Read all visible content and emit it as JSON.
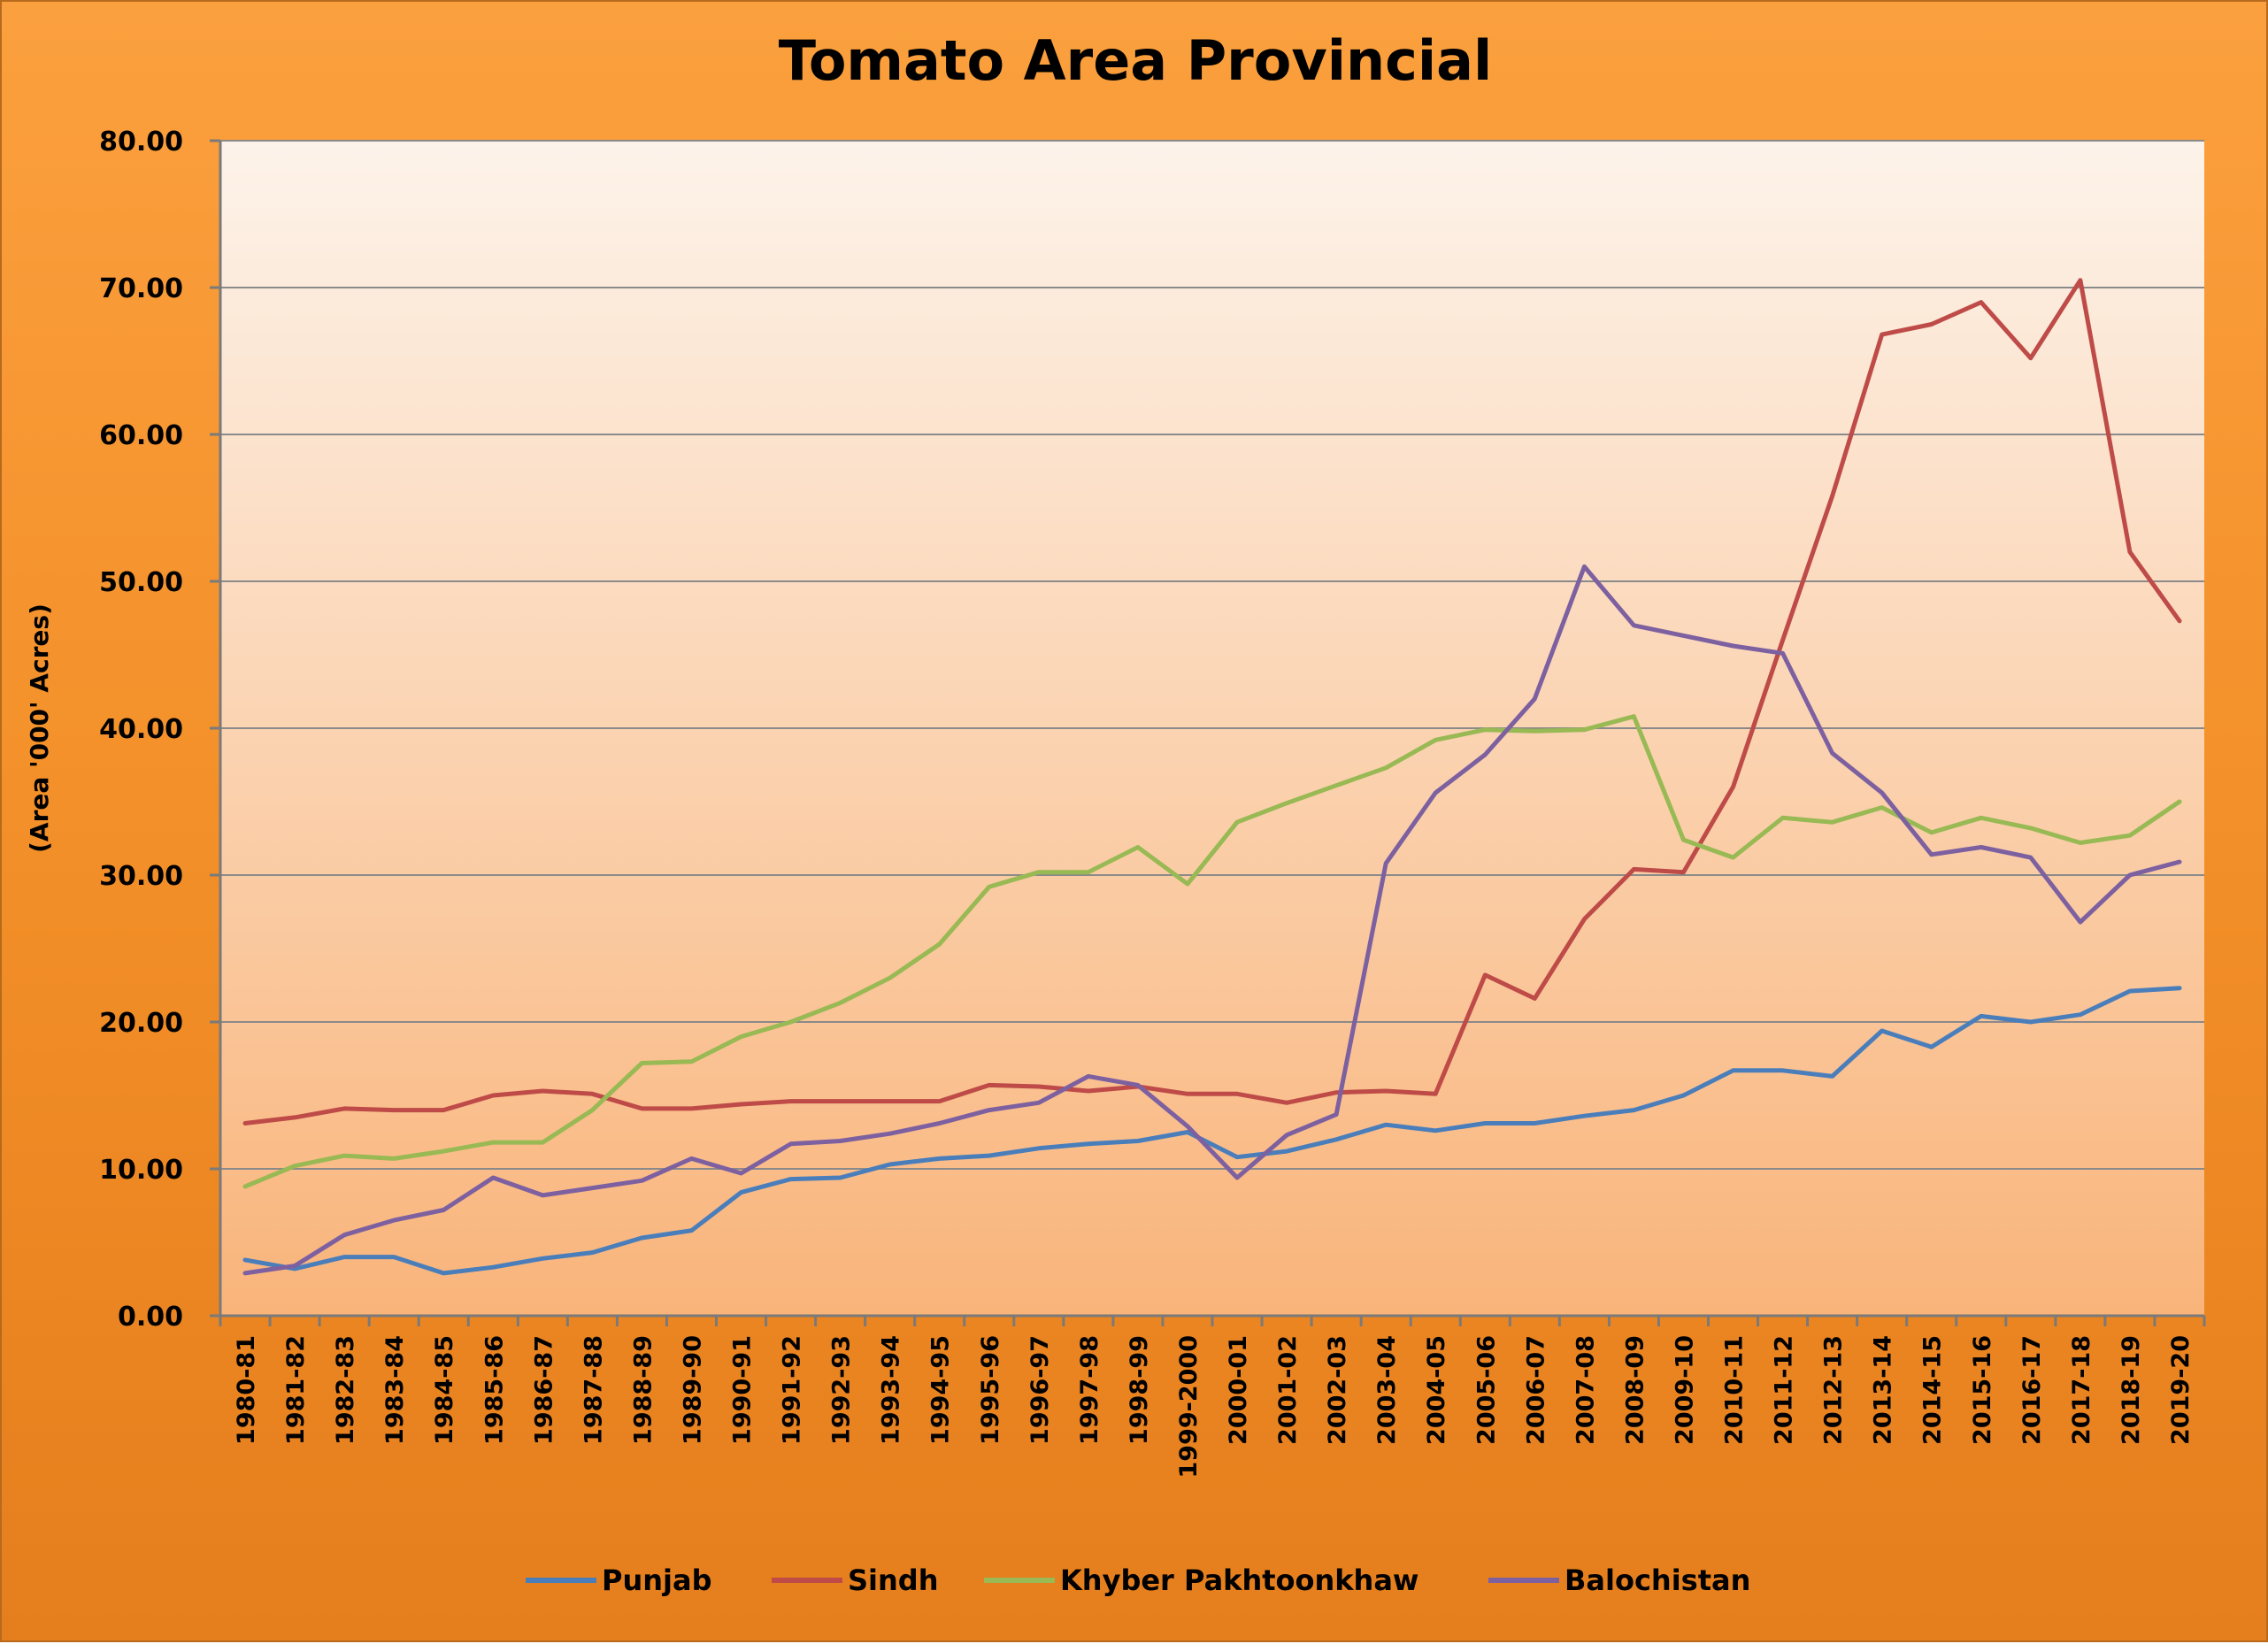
{
  "chart_data": {
    "type": "line",
    "title": "Tomato Area Provincial",
    "xlabel": "",
    "ylabel": "(Area '000' Acres)",
    "ylim": [
      0,
      80
    ],
    "yticks": [
      "0.00",
      "10.00",
      "20.00",
      "30.00",
      "40.00",
      "50.00",
      "60.00",
      "70.00",
      "80.00"
    ],
    "grid": true,
    "legend_position": "bottom",
    "categories": [
      "1980-81",
      "1981-82",
      "1982-83",
      "1983-84",
      "1984-85",
      "1985-86",
      "1986-87",
      "1987-88",
      "1988-89",
      "1989-90",
      "1990-91",
      "1991-92",
      "1992-93",
      "1993-94",
      "1994-95",
      "1995-96",
      "1996-97",
      "1997-98",
      "1998-99",
      "1999-2000",
      "2000-01",
      "2001-02",
      "2002-03",
      "2003-04",
      "2004-05",
      "2005-06",
      "2006-07",
      "2007-08",
      "2008-09",
      "2009-10",
      "2010-11",
      "2011-12",
      "2012-13",
      "2013-14",
      "2014-15",
      "2015-16",
      "2016-17",
      "2017-18",
      "2018-19",
      "2019-20"
    ],
    "series": [
      {
        "name": "Punjab",
        "color": "#4a7ebb",
        "values": [
          3.8,
          3.2,
          4.0,
          4.0,
          2.9,
          3.3,
          3.9,
          4.3,
          5.3,
          5.8,
          8.4,
          9.3,
          9.4,
          10.3,
          10.7,
          10.9,
          11.4,
          11.7,
          11.9,
          12.5,
          10.8,
          11.2,
          12.0,
          13.0,
          12.6,
          13.1,
          13.1,
          13.6,
          14.0,
          15.0,
          16.7,
          16.7,
          16.3,
          19.4,
          18.3,
          20.4,
          20.0,
          20.5,
          22.1,
          22.3
        ]
      },
      {
        "name": "Sindh",
        "color": "#be4b48",
        "values": [
          13.1,
          13.5,
          14.1,
          14.0,
          14.0,
          15.0,
          15.3,
          15.1,
          14.1,
          14.1,
          14.4,
          14.6,
          14.6,
          14.6,
          14.6,
          15.7,
          15.6,
          15.3,
          15.6,
          15.1,
          15.1,
          14.5,
          15.2,
          15.3,
          15.1,
          23.2,
          21.6,
          27.0,
          30.4,
          30.2,
          36.0,
          46.0,
          55.8,
          66.8,
          67.5,
          69.0,
          65.2,
          70.5,
          52.0,
          47.3
        ]
      },
      {
        "name": "Khyber Pakhtoonkhaw",
        "color": "#98b954",
        "values": [
          8.8,
          10.2,
          10.9,
          10.7,
          11.2,
          11.8,
          11.8,
          14.0,
          17.2,
          17.3,
          19.0,
          20.0,
          21.3,
          23.0,
          25.3,
          29.2,
          30.2,
          30.2,
          31.9,
          29.4,
          33.6,
          34.9,
          36.1,
          37.3,
          39.2,
          39.9,
          39.8,
          39.9,
          40.8,
          32.4,
          31.2,
          33.9,
          33.6,
          34.6,
          32.9,
          33.9,
          33.2,
          32.2,
          32.7,
          35.0
        ]
      },
      {
        "name": "Balochistan",
        "color": "#7d60a0",
        "values": [
          2.9,
          3.4,
          5.5,
          6.5,
          7.2,
          9.4,
          8.2,
          8.7,
          9.2,
          10.7,
          9.7,
          11.7,
          11.9,
          12.4,
          13.1,
          14.0,
          14.5,
          16.3,
          15.7,
          12.9,
          9.4,
          12.3,
          13.7,
          30.8,
          35.6,
          38.2,
          42.0,
          51.0,
          47.0,
          46.3,
          45.6,
          45.1,
          38.3,
          35.6,
          31.4,
          31.9,
          31.2,
          26.8,
          30.0,
          30.9
        ]
      }
    ]
  }
}
